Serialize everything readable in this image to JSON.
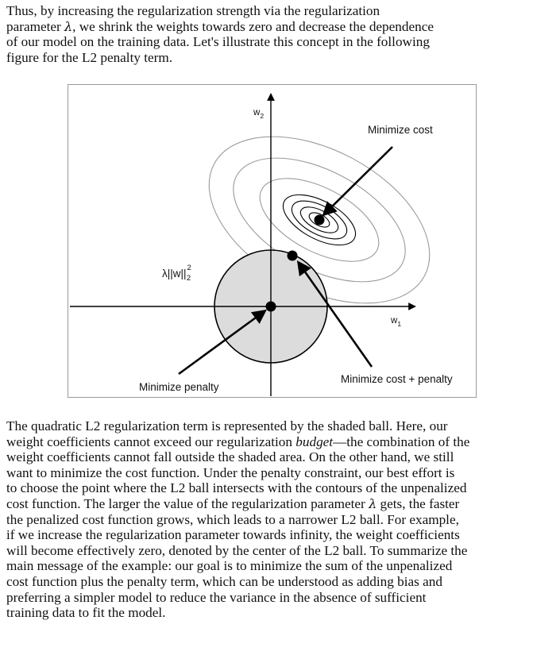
{
  "paragraph1": {
    "lines": [
      {
        "a": "Thus, by increasing the regularization strength via the regularization"
      },
      {
        "a": "parameter ",
        "lam": "λ",
        "b": ", we shrink the weights towards zero and decrease the dependence"
      },
      {
        "a": "of our model on the training data. Let's illustrate this concept in the following"
      },
      {
        "a": "figure for the L2 penalty term."
      }
    ]
  },
  "figure": {
    "axis_w2_label": "w",
    "axis_w2_sub": "2",
    "axis_w1_label": "w",
    "axis_w1_sub": "1",
    "penalty_label": "λ||w||",
    "penalty_sup": "2",
    "penalty_sub": "2",
    "minimize_cost": "Minimize cost",
    "minimize_penalty": "Minimize penalty",
    "minimize_cost_penalty": "Minimize cost + penalty",
    "colors": {
      "ball_fill": "#dcdcdc",
      "contour": "#9a9a9a",
      "stroke": "#000000"
    }
  },
  "paragraph2": {
    "lines": [
      {
        "a": "The quadratic L2 regularization term is represented by the shaded ball. Here, our"
      },
      {
        "a": "weight coefficients cannot exceed our regularization ",
        "em": "budget",
        "b": "—the combination of the"
      },
      {
        "a": "weight coefficients cannot fall outside the shaded area. On the other hand, we still"
      },
      {
        "a": "want to minimize the cost function. Under the penalty constraint, our best effort is"
      },
      {
        "a": "to choose the point where the L2 ball intersects with the contours of the unpenalized"
      },
      {
        "a": "cost function. The larger the value of the regularization parameter ",
        "lam": "λ",
        "b": " gets, the faster"
      },
      {
        "a": "the penalized cost function grows, which leads to a narrower L2 ball. For example,"
      },
      {
        "a": "if we increase the regularization parameter towards infinity, the weight coefficients"
      },
      {
        "a": "will become effectively zero, denoted by the center of the L2 ball. To summarize the"
      },
      {
        "a": "main message of the example: our goal is to minimize the sum of the unpenalized"
      },
      {
        "a": "cost function plus the penalty term, which can be understood as adding bias and"
      },
      {
        "a": "preferring a simpler model to reduce the variance in the absence of sufficient"
      },
      {
        "a": "training data to fit the model."
      }
    ]
  }
}
